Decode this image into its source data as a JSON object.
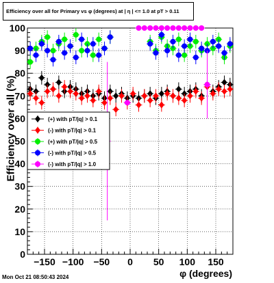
{
  "header": {
    "title": "Efficiency over all for Primary vs φ (degrees) at |  η | <= 1.0 at pT > 0.11"
  },
  "footer": {
    "timestamp": "Mon Oct 21 08:50:43 2024"
  },
  "chart_data": {
    "type": "scatter",
    "xlabel": "φ (degrees)",
    "ylabel": "Efficiency over all (%)",
    "xlim": [
      -180,
      180
    ],
    "ylim": [
      0,
      100
    ],
    "xticks": [
      -150,
      -100,
      -50,
      0,
      50,
      100,
      150
    ],
    "xtick_labels": [
      "−150",
      "−100",
      "−50",
      "0",
      "50",
      "100",
      "150"
    ],
    "yticks": [
      0,
      10,
      20,
      30,
      40,
      50,
      60,
      70,
      80,
      90,
      100
    ],
    "grid": true,
    "legend_position": "left-middle",
    "series": [
      {
        "name": "(+) with pT/|q| > 0.1",
        "color": "#000000",
        "marker": "diamond",
        "x": [
          -175,
          -165,
          -155,
          -145,
          -135,
          -125,
          -115,
          -105,
          -95,
          -85,
          -75,
          -65,
          -55,
          -45,
          -35,
          -25,
          -15,
          -5,
          5,
          15,
          25,
          35,
          45,
          55,
          65,
          75,
          85,
          95,
          105,
          115,
          125,
          135,
          145,
          155,
          165,
          175
        ],
        "y": [
          73,
          72,
          78,
          75,
          73,
          76,
          72,
          74,
          73,
          71,
          72,
          70,
          71,
          69,
          72,
          70,
          71,
          69,
          70,
          69,
          70,
          71,
          69,
          71,
          72,
          70,
          73,
          71,
          72,
          73,
          70,
          75,
          72,
          74,
          76,
          75
        ]
      },
      {
        "name": "(-) with pT/|q| > 0.1",
        "color": "#ff0000",
        "marker": "diamond",
        "x": [
          -175,
          -165,
          -155,
          -145,
          -135,
          -125,
          -115,
          -105,
          -95,
          -85,
          -75,
          -65,
          -55,
          -45,
          -35,
          -25,
          -15,
          -5,
          5,
          15,
          25,
          35,
          45,
          55,
          65,
          75,
          85,
          95,
          105,
          115,
          125,
          135,
          145,
          155,
          165,
          175
        ],
        "y": [
          71,
          69,
          67,
          72,
          73,
          70,
          74,
          72,
          71,
          69,
          70,
          68,
          72,
          67,
          69,
          64,
          70,
          67,
          71,
          66,
          70,
          68,
          70,
          66,
          71,
          70,
          69,
          68,
          70,
          72,
          69,
          74,
          71,
          73,
          72,
          73
        ]
      },
      {
        "name": "(+) with pT/|q| > 0.5",
        "color": "#00ee00",
        "marker": "circle",
        "x": [
          -175,
          -165,
          -155,
          -145,
          -135,
          -125,
          -115,
          -105,
          -95,
          -85,
          -75,
          -65,
          -55,
          -45,
          -35,
          35,
          45,
          55,
          65,
          75,
          85,
          95,
          105,
          115,
          125,
          135,
          145,
          155,
          165,
          175
        ],
        "y": [
          85,
          91,
          94,
          96,
          90,
          93,
          95,
          92,
          97,
          90,
          93,
          88,
          95,
          91,
          96,
          94,
          90,
          96,
          92,
          91,
          95,
          88,
          92,
          94,
          90,
          93,
          91,
          95,
          87,
          92
        ]
      },
      {
        "name": "(-) with pT/|q| > 0.5",
        "color": "#0000ff",
        "marker": "circle",
        "x": [
          -175,
          -165,
          -155,
          -145,
          -135,
          -125,
          -115,
          -105,
          -95,
          -85,
          -75,
          -65,
          -55,
          -45,
          -35,
          35,
          45,
          55,
          65,
          75,
          85,
          95,
          105,
          115,
          125,
          135,
          145,
          155,
          165,
          175
        ],
        "y": [
          91,
          88,
          93,
          90,
          86,
          94,
          89,
          92,
          87,
          95,
          90,
          93,
          88,
          91,
          96,
          93,
          89,
          97,
          90,
          94,
          88,
          92,
          95,
          87,
          91,
          90,
          94,
          92,
          89,
          93
        ]
      },
      {
        "name": "(-) with pT/|q| > 1.0",
        "color": "#ff00ff",
        "marker": "circle",
        "x": [
          -40,
          -5,
          15,
          25,
          35,
          45,
          55,
          65,
          75,
          85,
          95,
          105,
          115,
          125,
          135
        ],
        "y": [
          50,
          67,
          100,
          100,
          100,
          100,
          100,
          100,
          100,
          100,
          100,
          100,
          100,
          100,
          75
        ],
        "yerr": [
          35,
          0,
          0,
          0,
          0,
          0,
          0,
          0,
          0,
          0,
          0,
          0,
          0,
          0,
          15
        ]
      }
    ]
  }
}
